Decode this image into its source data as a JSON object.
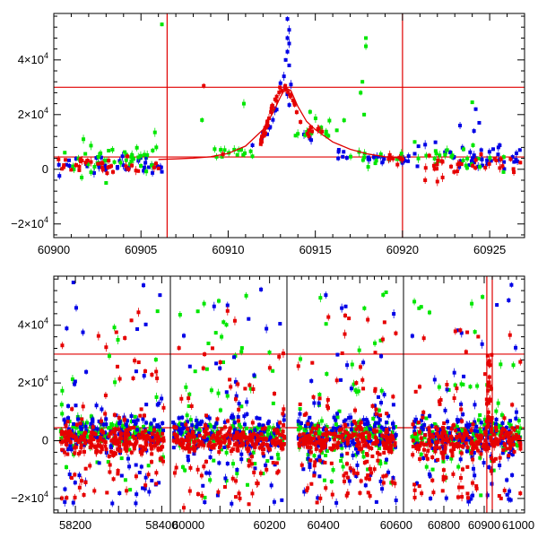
{
  "chart_data": [
    {
      "type": "scatter",
      "title": "",
      "xlabel": "",
      "ylabel": "",
      "xlim": [
        60900,
        60927
      ],
      "ylim": [
        -25000,
        57000
      ],
      "x_ticks": [
        "60900",
        "60905",
        "60910",
        "60915",
        "60920",
        "60925"
      ],
      "y_ticks": [
        {
          "value": -20000,
          "mantissa": "−2×10",
          "exp": "4"
        },
        {
          "value": 0,
          "mantissa": "0",
          "exp": ""
        },
        {
          "value": 20000,
          "mantissa": "2×10",
          "exp": "4"
        },
        {
          "value": 40000,
          "mantissa": "4×10",
          "exp": "4"
        }
      ],
      "hlines": [
        30000,
        4500
      ],
      "vlines": [
        60906.5,
        60920.0
      ],
      "colors": {
        "blue": "#0000e6",
        "green": "#00e600",
        "red": "#e60000",
        "line": "#e00000"
      },
      "model_curve": {
        "color": "red",
        "points": [
          [
            60906,
            3600
          ],
          [
            60907,
            3800
          ],
          [
            60908,
            4100
          ],
          [
            60909,
            4600
          ],
          [
            60910,
            5800
          ],
          [
            60911,
            8500
          ],
          [
            60912,
            14500
          ],
          [
            60912.6,
            21000
          ],
          [
            60913.0,
            26500
          ],
          [
            60913.3,
            29800
          ],
          [
            60913.6,
            28800
          ],
          [
            60914,
            23000
          ],
          [
            60914.5,
            17500
          ],
          [
            60915,
            14500
          ],
          [
            60916,
            10000
          ],
          [
            60917,
            7300
          ],
          [
            60918,
            5600
          ],
          [
            60919,
            4600
          ],
          [
            60920,
            4100
          ]
        ]
      },
      "series": [
        {
          "name": "blue",
          "color": "#0000e6",
          "peak_points": [
            [
              60913.4,
              55000
            ],
            [
              60913.5,
              51000
            ],
            [
              60913.4,
              48000
            ],
            [
              60913.5,
              46000
            ],
            [
              60913.4,
              43000
            ],
            [
              60913.3,
              40000
            ],
            [
              60913.5,
              38000
            ],
            [
              60913.2,
              34000
            ],
            [
              60913.0,
              31500
            ],
            [
              60913.6,
              31000
            ],
            [
              60924.2,
              22000
            ],
            [
              60924.4,
              17000
            ],
            [
              60924.1,
              14000
            ],
            [
              60923.3,
              16000
            ],
            [
              60921.3,
              9000
            ],
            [
              60925.5,
              8000
            ]
          ],
          "bands": [
            [
              60900.2,
              60906.2,
              2000,
              1600,
              40
            ],
            [
              60910.5,
              60917.5,
              9000,
              1200,
              22
            ],
            [
              60917.5,
              60920.5,
              4300,
              900,
              14
            ],
            [
              60920.7,
              60926.8,
              3500,
              2200,
              40
            ]
          ]
        },
        {
          "name": "green",
          "color": "#00e600",
          "peak_points": [
            [
              60906.2,
              53000
            ],
            [
              60917.9,
              48000
            ],
            [
              60917.9,
              45000
            ],
            [
              60917.7,
              32000
            ],
            [
              60917.6,
              28000
            ],
            [
              60917.8,
              20000
            ],
            [
              60910.9,
              24000
            ],
            [
              60908.5,
              18000
            ],
            [
              60905.8,
              13500
            ],
            [
              60901.7,
              11000
            ],
            [
              60924.0,
              24500
            ],
            [
              60920.7,
              10000
            ],
            [
              60903.0,
              -5000
            ],
            [
              60901.6,
              -3000
            ],
            [
              60912.5,
              22000
            ],
            [
              60914.7,
              21000
            ]
          ],
          "bands": [
            [
              60900.3,
              60906.2,
              4200,
              2600,
              38
            ],
            [
              60909.2,
              60911.5,
              6200,
              1300,
              14
            ],
            [
              60913.8,
              60917.0,
              14500,
              2500,
              16
            ],
            [
              60917.0,
              60920.0,
              4500,
              1400,
              14
            ],
            [
              60920.8,
              60926.5,
              3200,
              2000,
              24
            ]
          ]
        },
        {
          "name": "red",
          "color": "#e60000",
          "peak_points": [
            [
              60908.6,
              30500
            ],
            [
              60922.0,
              -4500
            ],
            [
              60921.3,
              -4000
            ],
            [
              60922.3,
              -3000
            ],
            [
              60909.7,
              5500
            ]
          ],
          "bands": [
            [
              60900.2,
              60906.2,
              1800,
              1200,
              36
            ],
            [
              60911.8,
              60914.2,
              20000,
              6000,
              40
            ],
            [
              60914.5,
              60915.5,
              14000,
              1500,
              8
            ],
            [
              60919.2,
              60920.2,
              4200,
              800,
              8
            ],
            [
              60920.8,
              60926.8,
              2200,
              1500,
              30
            ]
          ]
        }
      ]
    },
    {
      "type": "scatter",
      "title": "",
      "xlabel": "",
      "ylabel": "",
      "ylim": [
        -25000,
        57000
      ],
      "segments": [
        {
          "xlim": [
            58150,
            58420
          ],
          "x_ticks": [
            "58200",
            "58400"
          ]
        },
        {
          "xlim": [
            60000,
            60235
          ],
          "x_ticks": [
            "60000",
            "60200"
          ]
        },
        {
          "xlim": [
            60300,
            60620
          ],
          "x_ticks": [
            "60400",
            "60600"
          ]
        },
        {
          "xlim": [
            60700,
            61000
          ],
          "x_ticks": [
            "60800",
            "60900",
            "61000"
          ]
        }
      ],
      "y_ticks": [
        {
          "value": -20000,
          "mantissa": "−2×10",
          "exp": "4"
        },
        {
          "value": 0,
          "mantissa": "0",
          "exp": ""
        },
        {
          "value": 20000,
          "mantissa": "2×10",
          "exp": "4"
        },
        {
          "value": 40000,
          "mantissa": "4×10",
          "exp": "4"
        }
      ],
      "hlines": [
        30000,
        4500
      ],
      "vlines": [
        60906.5,
        60920.0
      ],
      "colors": {
        "blue": "#0000e6",
        "green": "#00e600",
        "red": "#e60000",
        "line": "#e00000"
      },
      "seasons": [
        {
          "x_range": [
            58165,
            58405
          ],
          "segment": 0
        },
        {
          "x_range": [
            60005,
            60230
          ],
          "segment": 1
        },
        {
          "x_range": [
            60330,
            60600
          ],
          "segment": 2
        },
        {
          "x_range": [
            60720,
            60990
          ],
          "segment": 3
        }
      ],
      "series": [
        {
          "name": "green",
          "color": "#00e600",
          "core": [
            0,
            5000
          ],
          "spread": [
            -8000,
            52000
          ],
          "count_per_season": 160
        },
        {
          "name": "blue",
          "color": "#0000e6",
          "core": [
            -2000,
            8000
          ],
          "spread": [
            -22000,
            55000
          ],
          "count_per_season": 170
        },
        {
          "name": "red",
          "color": "#e60000",
          "core": [
            -3000,
            3000
          ],
          "spread": [
            -20000,
            45000
          ],
          "count_per_season": 260
        }
      ]
    }
  ]
}
